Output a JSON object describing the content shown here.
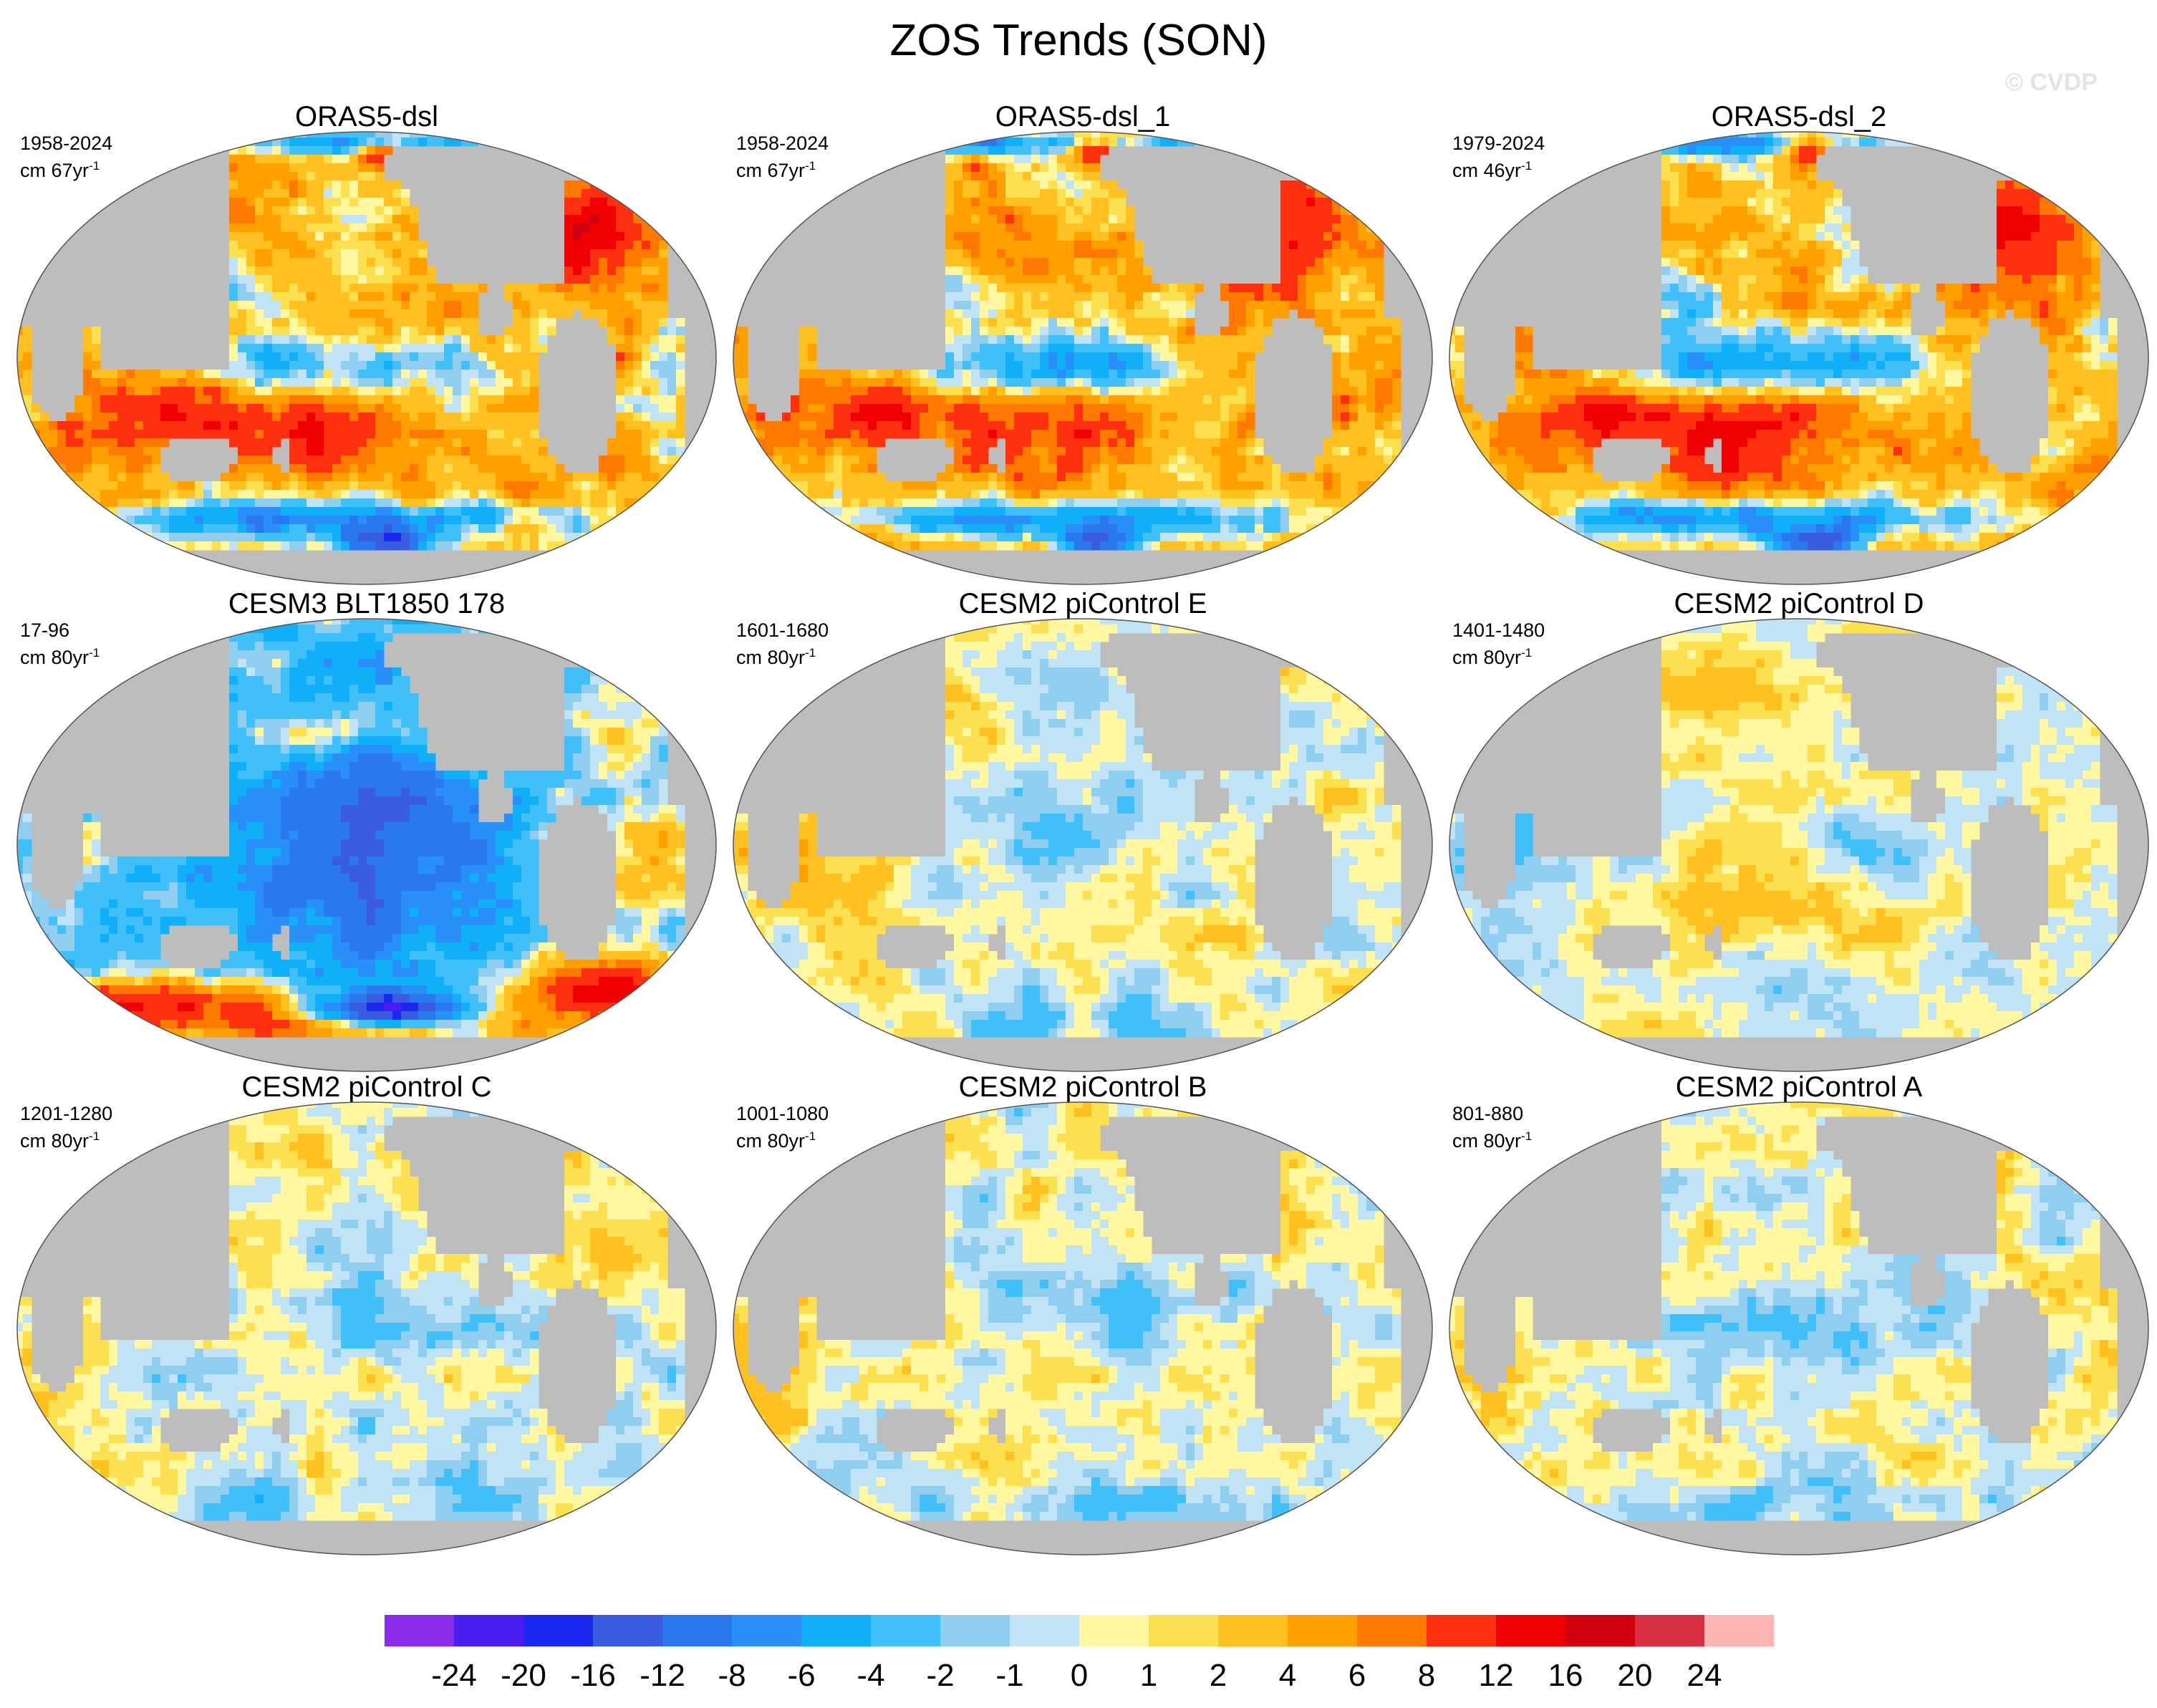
{
  "figure": {
    "title": "ZOS Trends (SON)",
    "watermark": "© CVDP"
  },
  "chart_data": {
    "type": "heatmap",
    "title": "ZOS Trends (SON)",
    "projection": "global map",
    "colorbar": {
      "labels": [
        "-24",
        "-20",
        "-16",
        "-12",
        "-8",
        "-6",
        "-4",
        "-2",
        "-1",
        "0",
        "1",
        "2",
        "4",
        "6",
        "8",
        "12",
        "16",
        "20",
        "24"
      ],
      "levels": [
        -24,
        -20,
        -16,
        -12,
        -8,
        -6,
        -4,
        -2,
        -1,
        0,
        1,
        2,
        4,
        6,
        8,
        12,
        16,
        20,
        24
      ],
      "colors": [
        "#8b2ce8",
        "#4a1df0",
        "#1a28f0",
        "#3a5ce0",
        "#2a78f0",
        "#2890f8",
        "#10b0f8",
        "#40c0f8",
        "#90cef0",
        "#c0e4f6",
        "#fff8a0",
        "#fde050",
        "#ffc020",
        "#ffa000",
        "#ff7800",
        "#ff3010",
        "#f00000",
        "#d00010",
        "#d83040",
        "#ffb4b4"
      ]
    },
    "panels": [
      {
        "title": "ORAS5-dsl",
        "years": "1958-2024",
        "units_prefix": "cm 67yr",
        "units_sup": "-1",
        "pattern": "obs"
      },
      {
        "title": "ORAS5-dsl_1",
        "years": "1958-2024",
        "units_prefix": "cm 67yr",
        "units_sup": "-1",
        "pattern": "obs"
      },
      {
        "title": "ORAS5-dsl_2",
        "years": "1979-2024",
        "units_prefix": "cm 46yr",
        "units_sup": "-1",
        "pattern": "obs2"
      },
      {
        "title": "CESM3 BLT1850 178",
        "years": "17-96",
        "units_prefix": "cm 80yr",
        "units_sup": "-1",
        "pattern": "cesm3"
      },
      {
        "title": "CESM2 piControl E",
        "years": "1601-1680",
        "units_prefix": "cm 80yr",
        "units_sup": "-1",
        "pattern": "ctrl"
      },
      {
        "title": "CESM2 piControl D",
        "years": "1401-1480",
        "units_prefix": "cm 80yr",
        "units_sup": "-1",
        "pattern": "ctrlD"
      },
      {
        "title": "CESM2 piControl C",
        "years": "1201-1280",
        "units_prefix": "cm 80yr",
        "units_sup": "-1",
        "pattern": "ctrl"
      },
      {
        "title": "CESM2 piControl B",
        "years": "1001-1080",
        "units_prefix": "cm 80yr",
        "units_sup": "-1",
        "pattern": "ctrl"
      },
      {
        "title": "CESM2 piControl A",
        "years": "801-880",
        "units_prefix": "cm 80yr",
        "units_sup": "-1",
        "pattern": "ctrl"
      }
    ]
  }
}
